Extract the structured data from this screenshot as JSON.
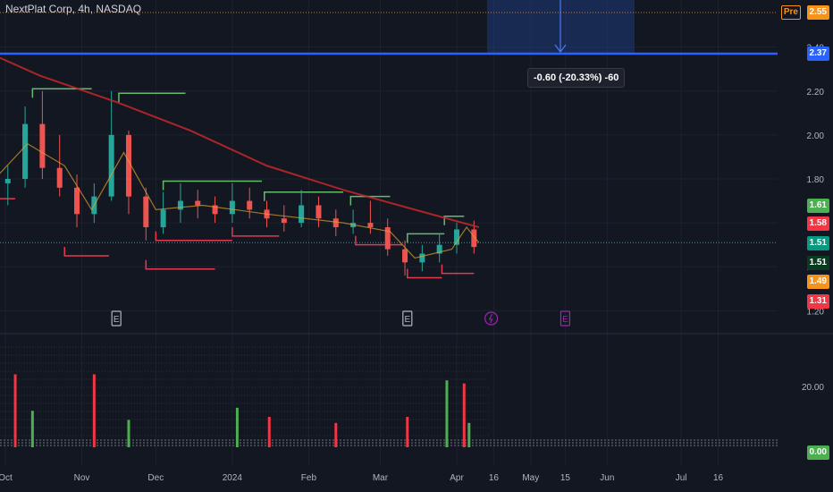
{
  "header": {
    "title": "NextPlat Corp, 4h, NASDAQ"
  },
  "colors": {
    "background": "#131722",
    "up": "#26a69a",
    "down": "#ef5350",
    "vol_up": "#4caf50",
    "vol_down": "#f23645",
    "ma_long": "#c62828",
    "ma_short": "#e0a030",
    "resistance": "#66bb6a",
    "support": "#e53950",
    "line_blue": "#2962ff"
  },
  "price_tags": [
    {
      "label": "2.55",
      "value": 2.55,
      "bg": "#f7931a",
      "fg": "#ffffff",
      "prefix": "Pre"
    },
    {
      "label": "2.37",
      "value": 2.37,
      "bg": "#2962ff",
      "fg": "#ffffff"
    },
    {
      "label": "1.61",
      "value": 1.61,
      "bg": "#4caf50",
      "fg": "#ffffff"
    },
    {
      "label": "1.58",
      "value": 1.58,
      "bg": "#f23645",
      "fg": "#ffffff"
    },
    {
      "label": "1.51",
      "value": 1.51,
      "bg": "#089981",
      "fg": "#ffffff"
    },
    {
      "label": "1.51",
      "value": 1.51,
      "bg": "#0b3b1f",
      "fg": "#ffffff"
    },
    {
      "label": "1.49",
      "value": 1.49,
      "bg": "#f7931a",
      "fg": "#ffffff"
    },
    {
      "label": "1.31",
      "value": 1.31,
      "bg": "#f23645",
      "fg": "#ffffff"
    }
  ],
  "volume_tag": {
    "label": "0.00",
    "bg": "#4caf50",
    "fg": "#ffffff"
  },
  "measure": {
    "label": "-0.60 (-20.33%) -60"
  },
  "events": [
    {
      "date": "2023-11-15",
      "kind": "E"
    },
    {
      "date": "2024-03-12",
      "kind": "E"
    },
    {
      "date": "2024-04-15",
      "kind": "split"
    },
    {
      "date": "2024-05-15",
      "kind": "E"
    }
  ],
  "chart_data": {
    "type": "candlestick",
    "title": "NextPlat Corp, 4h, NASDAQ",
    "x_ticks": [
      "Oct",
      "Nov",
      "Dec",
      "2024",
      "Feb",
      "Mar",
      "Apr",
      "16",
      "May",
      "15",
      "Jun",
      "Jul",
      "16"
    ],
    "y_ticks": [
      "1.20",
      "1.40",
      "1.60",
      "1.80",
      "2.00",
      "2.20",
      "2.40",
      "2.60"
    ],
    "ylim": [
      1.17,
      2.58
    ],
    "volume_y_ticks": [
      "20.00"
    ],
    "candles_weekly_approx": [
      {
        "date": "2023-10-02",
        "o": 1.78,
        "h": 1.86,
        "l": 1.68,
        "c": 1.8
      },
      {
        "date": "2023-10-09",
        "o": 1.8,
        "h": 2.13,
        "l": 1.76,
        "c": 2.05
      },
      {
        "date": "2023-10-16",
        "o": 2.05,
        "h": 2.2,
        "l": 1.8,
        "c": 1.85
      },
      {
        "date": "2023-10-23",
        "o": 1.85,
        "h": 2.0,
        "l": 1.72,
        "c": 1.76
      },
      {
        "date": "2023-10-30",
        "o": 1.76,
        "h": 1.82,
        "l": 1.58,
        "c": 1.64
      },
      {
        "date": "2023-11-06",
        "o": 1.64,
        "h": 1.78,
        "l": 1.6,
        "c": 1.72
      },
      {
        "date": "2023-11-13",
        "o": 1.72,
        "h": 2.2,
        "l": 1.7,
        "c": 2.0
      },
      {
        "date": "2023-11-20",
        "o": 2.0,
        "h": 2.02,
        "l": 1.64,
        "c": 1.72
      },
      {
        "date": "2023-11-27",
        "o": 1.72,
        "h": 1.76,
        "l": 1.52,
        "c": 1.58
      },
      {
        "date": "2023-12-04",
        "o": 1.58,
        "h": 1.74,
        "l": 1.55,
        "c": 1.66
      },
      {
        "date": "2023-12-11",
        "o": 1.66,
        "h": 1.78,
        "l": 1.6,
        "c": 1.7
      },
      {
        "date": "2023-12-18",
        "o": 1.7,
        "h": 1.75,
        "l": 1.62,
        "c": 1.68
      },
      {
        "date": "2023-12-25",
        "o": 1.68,
        "h": 1.72,
        "l": 1.6,
        "c": 1.64
      },
      {
        "date": "2024-01-01",
        "o": 1.64,
        "h": 1.78,
        "l": 1.6,
        "c": 1.7
      },
      {
        "date": "2024-01-08",
        "o": 1.7,
        "h": 1.76,
        "l": 1.62,
        "c": 1.66
      },
      {
        "date": "2024-01-15",
        "o": 1.66,
        "h": 1.7,
        "l": 1.58,
        "c": 1.62
      },
      {
        "date": "2024-01-22",
        "o": 1.62,
        "h": 1.68,
        "l": 1.56,
        "c": 1.6
      },
      {
        "date": "2024-01-29",
        "o": 1.6,
        "h": 1.75,
        "l": 1.58,
        "c": 1.68
      },
      {
        "date": "2024-02-05",
        "o": 1.68,
        "h": 1.72,
        "l": 1.58,
        "c": 1.62
      },
      {
        "date": "2024-02-12",
        "o": 1.62,
        "h": 1.66,
        "l": 1.54,
        "c": 1.58
      },
      {
        "date": "2024-02-19",
        "o": 1.58,
        "h": 1.66,
        "l": 1.55,
        "c": 1.6
      },
      {
        "date": "2024-02-26",
        "o": 1.6,
        "h": 1.7,
        "l": 1.55,
        "c": 1.58
      },
      {
        "date": "2024-03-04",
        "o": 1.58,
        "h": 1.62,
        "l": 1.45,
        "c": 1.48
      },
      {
        "date": "2024-03-11",
        "o": 1.48,
        "h": 1.52,
        "l": 1.36,
        "c": 1.42
      },
      {
        "date": "2024-03-18",
        "o": 1.42,
        "h": 1.5,
        "l": 1.38,
        "c": 1.46
      },
      {
        "date": "2024-03-25",
        "o": 1.46,
        "h": 1.55,
        "l": 1.42,
        "c": 1.5
      },
      {
        "date": "2024-04-01",
        "o": 1.5,
        "h": 1.6,
        "l": 1.46,
        "c": 1.57
      },
      {
        "date": "2024-04-08",
        "o": 1.57,
        "h": 1.61,
        "l": 1.46,
        "c": 1.49
      }
    ],
    "series": [
      {
        "name": "",
        "kind": "ma_long",
        "points": [
          [
            "2023-09-25",
            2.37
          ],
          [
            "2023-10-15",
            2.27
          ],
          [
            "2023-11-15",
            2.15
          ],
          [
            "2023-12-15",
            2.02
          ],
          [
            "2024-01-15",
            1.86
          ],
          [
            "2024-02-15",
            1.75
          ],
          [
            "2024-03-15",
            1.66
          ],
          [
            "2024-04-10",
            1.58
          ]
        ]
      },
      {
        "name": "",
        "kind": "ma_short",
        "points": [
          [
            "2023-09-25",
            1.78
          ],
          [
            "2023-10-10",
            1.96
          ],
          [
            "2023-10-25",
            1.86
          ],
          [
            "2023-11-05",
            1.66
          ],
          [
            "2023-11-18",
            1.92
          ],
          [
            "2023-12-01",
            1.66
          ],
          [
            "2023-12-20",
            1.68
          ],
          [
            "2024-01-15",
            1.64
          ],
          [
            "2024-02-15",
            1.6
          ],
          [
            "2024-03-05",
            1.56
          ],
          [
            "2024-03-15",
            1.44
          ],
          [
            "2024-03-30",
            1.48
          ],
          [
            "2024-04-05",
            1.58
          ],
          [
            "2024-04-10",
            1.51
          ]
        ]
      }
    ],
    "resistance_lines": [
      {
        "from": "2023-10-12",
        "to": "2023-11-05",
        "value": 2.21
      },
      {
        "from": "2023-11-16",
        "to": "2023-12-13",
        "value": 2.19
      },
      {
        "from": "2023-12-04",
        "to": "2024-01-13",
        "value": 1.79
      },
      {
        "from": "2024-01-14",
        "to": "2024-02-15",
        "value": 1.74
      },
      {
        "from": "2024-02-18",
        "to": "2024-03-05",
        "value": 1.72
      },
      {
        "from": "2024-03-12",
        "to": "2024-03-27",
        "value": 1.55
      },
      {
        "from": "2024-03-27",
        "to": "2024-04-04",
        "value": 1.63
      }
    ],
    "support_lines": [
      {
        "from": "2023-09-25",
        "to": "2023-10-05",
        "value": 1.71
      },
      {
        "from": "2023-10-25",
        "to": "2023-11-12",
        "value": 1.45
      },
      {
        "from": "2023-12-01",
        "to": "2024-01-01",
        "value": 1.52
      },
      {
        "from": "2023-11-27",
        "to": "2023-12-25",
        "value": 1.39
      },
      {
        "from": "2024-01-01",
        "to": "2024-01-20",
        "value": 1.54
      },
      {
        "from": "2024-02-20",
        "to": "2024-03-10",
        "value": 1.5
      },
      {
        "from": "2024-03-12",
        "to": "2024-03-26",
        "value": 1.35
      },
      {
        "from": "2024-03-26",
        "to": "2024-04-08",
        "value": 1.37
      }
    ],
    "horizontal_lines": [
      {
        "value": 2.37,
        "style": "solid",
        "kind": "line_blue"
      },
      {
        "value": 2.55,
        "style": "dotted",
        "kind": "pre"
      }
    ],
    "volume_approx": [
      {
        "date": "2023-10-05",
        "v": 24,
        "up": false
      },
      {
        "date": "2023-10-12",
        "v": 12,
        "up": true
      },
      {
        "date": "2023-11-06",
        "v": 24,
        "up": false
      },
      {
        "date": "2023-11-20",
        "v": 9,
        "up": true
      },
      {
        "date": "2024-01-03",
        "v": 13,
        "up": true
      },
      {
        "date": "2024-01-16",
        "v": 10,
        "up": false
      },
      {
        "date": "2024-02-12",
        "v": 8,
        "up": false
      },
      {
        "date": "2024-03-12",
        "v": 10,
        "up": false
      },
      {
        "date": "2024-03-28",
        "v": 22,
        "up": true
      },
      {
        "date": "2024-04-04",
        "v": 21,
        "up": false
      },
      {
        "date": "2024-04-06",
        "v": 8,
        "up": true
      }
    ]
  }
}
